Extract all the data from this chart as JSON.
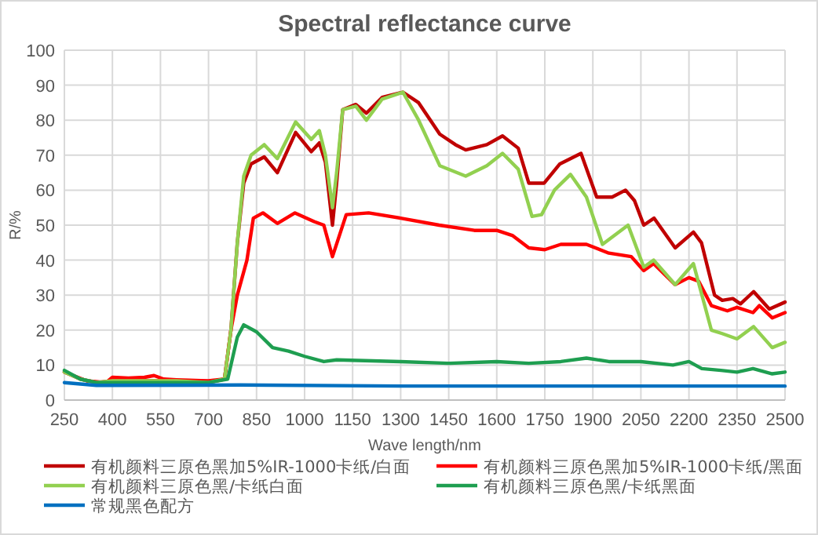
{
  "chart_data": {
    "type": "line",
    "title": "Spectral reflectance curve",
    "xlabel": "Wave length/nm",
    "ylabel": "R/%",
    "xlim": [
      250,
      2500
    ],
    "ylim": [
      0,
      100
    ],
    "xticks": [
      250,
      400,
      550,
      700,
      850,
      1000,
      1150,
      1300,
      1450,
      1600,
      1750,
      1900,
      2050,
      2200,
      2350,
      2500
    ],
    "yticks": [
      0,
      10,
      20,
      30,
      40,
      50,
      60,
      70,
      80,
      90,
      100
    ],
    "grid": true,
    "legend": "bottom",
    "marker": "none",
    "line_style": "solid",
    "series": [
      {
        "name": "有机颜料三原色黑加5%IR-1000卡纸/白面",
        "color": "#c00000",
        "x": [
          250,
          300,
          350,
          400,
          500,
          600,
          700,
          750,
          770,
          790,
          810,
          833,
          874,
          915,
          972,
          1021,
          1046,
          1065,
          1087,
          1100,
          1119,
          1160,
          1193,
          1242,
          1307,
          1356,
          1422,
          1471,
          1503,
          1569,
          1618,
          1667,
          1700,
          1748,
          1797,
          1863,
          1912,
          1960,
          2002,
          2030,
          2059,
          2091,
          2157,
          2214,
          2239,
          2280,
          2304,
          2337,
          2361,
          2402,
          2451,
          2500
        ],
        "values": [
          8,
          6,
          5,
          5.5,
          5.5,
          5.5,
          5,
          6,
          20,
          45,
          62,
          67.5,
          69.5,
          65,
          76.5,
          71,
          73.5,
          68,
          50,
          62,
          83,
          84.5,
          82,
          86.5,
          88,
          85,
          76,
          73,
          71.5,
          73,
          75.5,
          72,
          62,
          62,
          67.5,
          70.5,
          58,
          58,
          60,
          57,
          50,
          52,
          43.5,
          48,
          45,
          30,
          28.5,
          29,
          27.5,
          31,
          26,
          28
        ]
      },
      {
        "name": "有机颜料三原色黑加5%IR-1000卡纸/黑面",
        "color": "#ff0000",
        "x": [
          250,
          320,
          380,
          400,
          450,
          500,
          530,
          560,
          600,
          700,
          750,
          770,
          790,
          820,
          840,
          870,
          915,
          970,
          1030,
          1060,
          1087,
          1130,
          1200,
          1300,
          1420,
          1530,
          1600,
          1650,
          1700,
          1750,
          1800,
          1880,
          1950,
          2020,
          2059,
          2090,
          2157,
          2200,
          2230,
          2270,
          2320,
          2350,
          2400,
          2420,
          2460,
          2500
        ],
        "values": [
          8,
          5.5,
          5,
          6.5,
          6.3,
          6.5,
          7,
          6,
          5.8,
          5.5,
          6,
          20,
          30,
          40,
          52,
          53.5,
          50.5,
          53.5,
          51,
          50,
          41,
          53,
          53.5,
          52,
          50,
          48.5,
          48.5,
          47,
          43.5,
          43,
          44.5,
          44.5,
          42,
          41,
          37,
          39,
          33,
          35,
          34,
          27,
          25.5,
          26.5,
          25,
          27,
          23.5,
          25
        ]
      },
      {
        "name": "有机颜料三原色黑/卡纸白面",
        "color": "#92d050",
        "x": [
          250,
          300,
          350,
          400,
          500,
          600,
          700,
          750,
          770,
          790,
          810,
          833,
          874,
          915,
          972,
          1021,
          1046,
          1065,
          1087,
          1100,
          1119,
          1160,
          1193,
          1242,
          1307,
          1356,
          1422,
          1503,
          1569,
          1618,
          1667,
          1710,
          1740,
          1780,
          1830,
          1880,
          1930,
          2010,
          2059,
          2090,
          2157,
          2214,
          2270,
          2304,
          2350,
          2402,
          2460,
          2500
        ],
        "values": [
          8,
          6,
          5,
          5.5,
          5.5,
          5.5,
          5,
          6,
          20,
          45,
          64,
          70,
          73,
          69,
          79.5,
          74.5,
          77,
          70,
          55,
          65,
          83,
          84,
          80,
          86,
          88,
          80,
          67,
          64,
          67,
          70.5,
          66,
          52.5,
          53,
          60,
          64.5,
          58,
          44.5,
          50,
          38,
          40,
          33,
          39,
          20,
          19,
          17.5,
          21,
          15,
          16.5
        ]
      },
      {
        "name": "有机颜料三原色黑/卡纸黑面",
        "color": "#1e9e50",
        "x": [
          250,
          300,
          350,
          500,
          700,
          760,
          790,
          810,
          850,
          900,
          950,
          1000,
          1060,
          1100,
          1300,
          1450,
          1600,
          1700,
          1800,
          1880,
          1950,
          2050,
          2150,
          2200,
          2240,
          2300,
          2350,
          2400,
          2460,
          2500
        ],
        "values": [
          8.5,
          6,
          5,
          5,
          5,
          6,
          18,
          21.5,
          19.5,
          15,
          14,
          12.5,
          11,
          11.5,
          11,
          10.5,
          11,
          10.5,
          11,
          12,
          11,
          11,
          10,
          11,
          9,
          8.5,
          8,
          9,
          7.5,
          8
        ]
      },
      {
        "name": "常规黑色配方",
        "color": "#0070c0",
        "x": [
          250,
          350,
          800,
          1300,
          2500
        ],
        "values": [
          5,
          4.2,
          4.3,
          4,
          4
        ]
      }
    ]
  }
}
